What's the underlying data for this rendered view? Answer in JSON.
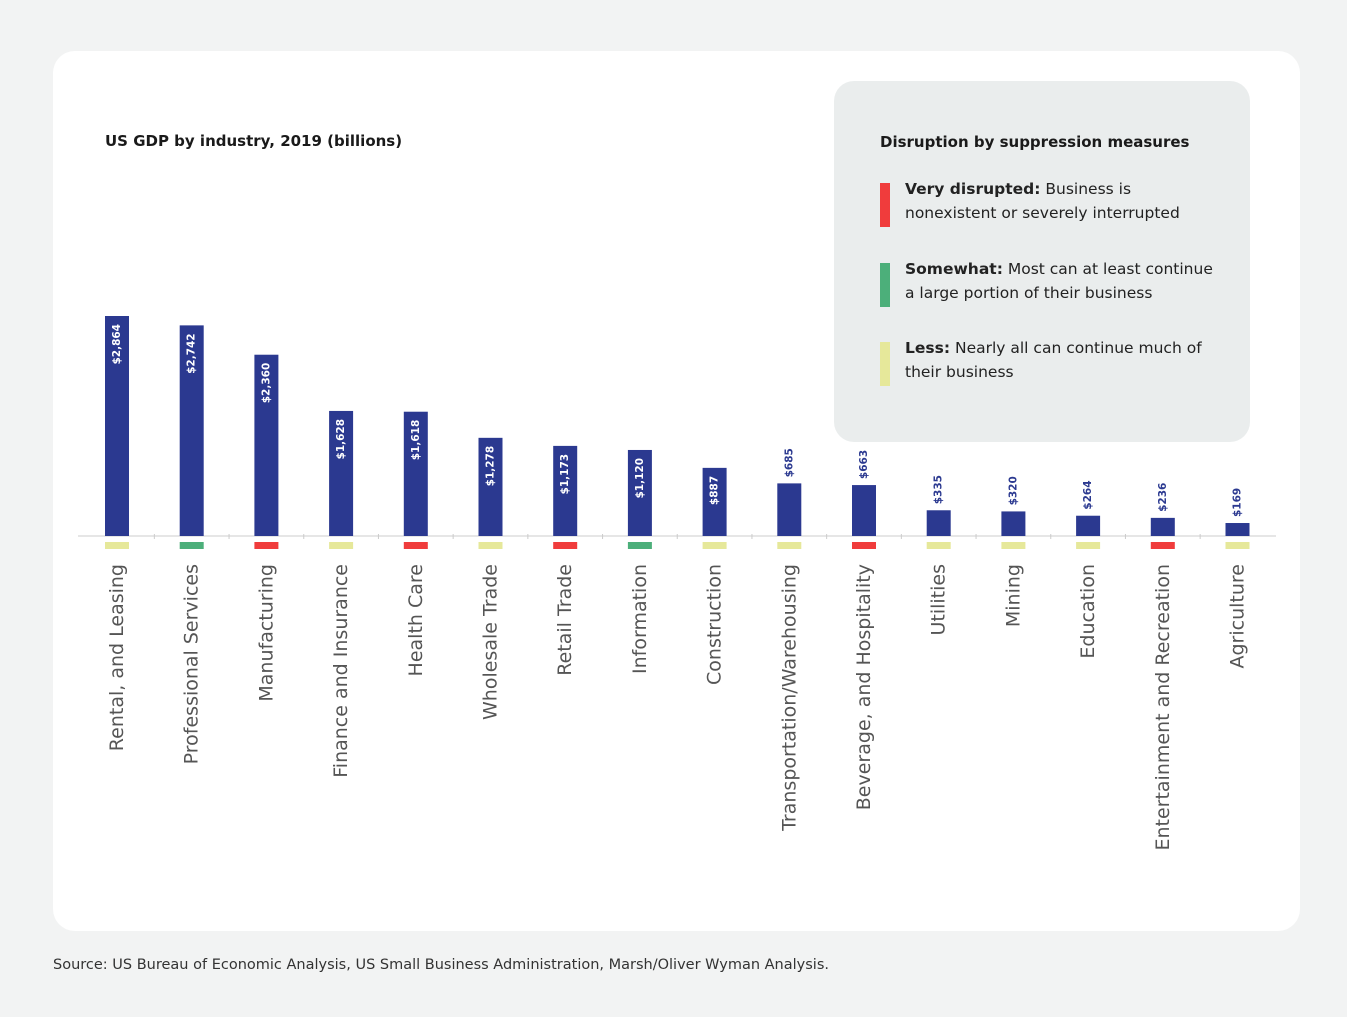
{
  "chart_data": {
    "type": "bar",
    "title": "US GDP by industry, 2019 (billions)",
    "categories": [
      "Rental, and Leasing",
      "Professional Services",
      "Manufacturing",
      "Finance and Insurance",
      "Health Care",
      "Wholesale Trade",
      "Retail Trade",
      "Information",
      "Construction",
      "Transportation/Warehousing",
      "Beverage, and Hospitality",
      "Utilities",
      "Mining",
      "Education",
      "Entertainment and Recreation",
      "Agriculture"
    ],
    "values": [
      2864,
      2742,
      2360,
      1628,
      1618,
      1278,
      1173,
      1120,
      887,
      685,
      663,
      335,
      320,
      264,
      236,
      169
    ],
    "value_labels": [
      "$2,864",
      "$2,742",
      "$2,360",
      "$1,628",
      "$1,618",
      "$1,278",
      "$1,173",
      "$1,120",
      "$887",
      "$685",
      "$663",
      "$335",
      "$320",
      "$264",
      "$236",
      "$169"
    ],
    "disruption": [
      "less",
      "somewhat",
      "very",
      "less",
      "very",
      "less",
      "very",
      "somewhat",
      "less",
      "less",
      "very",
      "less",
      "less",
      "less",
      "very",
      "less"
    ],
    "bar_color": "#2b3990",
    "ylim": [
      0,
      2864
    ],
    "xlabel": "",
    "ylabel": ""
  },
  "legend": {
    "title": "Disruption by suppression measures",
    "items": [
      {
        "key": "very",
        "label": "Very disrupted:",
        "text": " Business is nonexistent or severely interrupted",
        "color": "#f03c3c"
      },
      {
        "key": "somewhat",
        "label": "Somewhat:",
        "text": " Most can at least continue a large portion of their business",
        "color": "#4caf7a"
      },
      {
        "key": "less",
        "label": "Less:",
        "text": " Nearly all can continue much of their business",
        "color": "#e6e89a"
      }
    ]
  },
  "source": "Source: US Bureau of Economic Analysis, US Small Business Administration, Marsh/Oliver Wyman Analysis."
}
